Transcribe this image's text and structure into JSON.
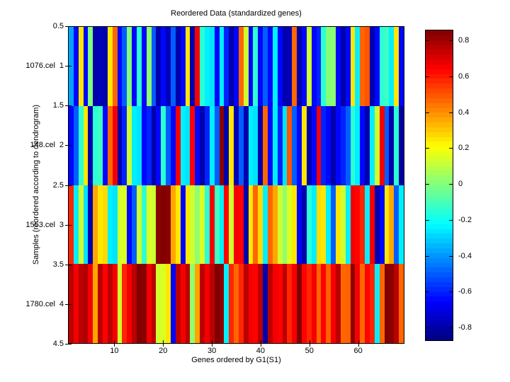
{
  "chart_data": {
    "type": "heatmap",
    "title": "Reordered Data (standardized genes)",
    "xlabel": "Genes ordered by G1(S1)",
    "ylabel": "Samples (reordered according to dendrogram)",
    "row_labels": [
      "1076.cel",
      "148.cel",
      "1553.cel",
      "1780.cel"
    ],
    "x_ticks": [
      10,
      20,
      30,
      40,
      50,
      60
    ],
    "y_ticks": [
      0.5,
      1,
      1.5,
      2,
      2.5,
      3,
      3.5,
      4,
      4.5
    ],
    "x_range": [
      0.5,
      69.5
    ],
    "y_range": [
      0.5,
      4.5
    ],
    "n_genes": 69,
    "colormap": "jet",
    "clim": [
      -0.875,
      0.86
    ],
    "colorbar_ticks": [
      0.8,
      0.6,
      0.4,
      0.2,
      0,
      -0.2,
      -0.4,
      -0.6,
      -0.8
    ],
    "colorbar_tick_labels": [
      "0.8",
      "0.6",
      "0.4",
      "0.2",
      "0",
      "-0.2",
      "-0.4",
      "-0.6",
      "-0.8"
    ],
    "grid": false,
    "legend": "colorbar-right",
    "matrix": [
      [
        -0.38,
        -0.65,
        0.25,
        -0.65,
        0.0,
        -0.8,
        -0.78,
        -0.8,
        0.25,
        0.47,
        -0.65,
        -0.5,
        0.0,
        -0.65,
        -0.15,
        -0.65,
        0.02,
        -0.5,
        -0.8,
        -0.65,
        -0.78,
        -0.5,
        -0.8,
        -0.65,
        0.25,
        -0.8,
        0.66,
        -0.15,
        -0.25,
        -0.27,
        -0.65,
        -0.25,
        -0.6,
        -0.8,
        -0.65,
        0.47,
        0.13,
        -0.65,
        -0.15,
        -0.65,
        -0.5,
        -0.65,
        -0.25,
        -0.65,
        -0.8,
        -0.78,
        0.47,
        -0.8,
        -0.65,
        0.13,
        -0.65,
        -0.6,
        -0.15,
        0.0,
        0.02,
        -0.65,
        -0.8,
        -0.65,
        0.25,
        -0.25,
        0.47,
        0.5,
        -0.8,
        -0.65,
        -0.15,
        -0.12,
        -0.25,
        0.25,
        -0.65
      ],
      [
        -0.65,
        -0.5,
        -0.15,
        0.25,
        -0.8,
        -0.15,
        -0.12,
        -0.65,
        0.47,
        0.66,
        -0.8,
        -0.6,
        0.13,
        -0.25,
        -0.27,
        -0.65,
        -0.6,
        -0.8,
        -0.65,
        -0.15,
        -0.5,
        -0.65,
        0.66,
        -0.25,
        -0.27,
        0.64,
        -0.65,
        -0.8,
        -0.6,
        -0.25,
        -0.5,
        0.84,
        -0.8,
        0.25,
        -0.78,
        -0.5,
        -0.8,
        -0.25,
        -0.27,
        -0.8,
        0.47,
        -0.65,
        -0.25,
        -0.6,
        -0.27,
        0.5,
        -0.5,
        -0.65,
        0.25,
        -0.8,
        -0.65,
        0.66,
        -0.6,
        -0.65,
        -0.8,
        -0.65,
        -0.6,
        -0.5,
        -0.15,
        -0.25,
        -0.65,
        -0.8,
        -0.25,
        0.13,
        0.66,
        -0.5,
        -0.8,
        -0.15,
        -0.82
      ],
      [
        0.58,
        -0.25,
        0.13,
        -0.27,
        -0.8,
        0.36,
        0.25,
        0.27,
        -0.25,
        -0.27,
        0.13,
        0.15,
        -0.65,
        -0.5,
        0.13,
        -0.15,
        0.15,
        0.12,
        0.84,
        0.86,
        0.84,
        0.36,
        0.25,
        -0.65,
        0.25,
        0.13,
        0.02,
        0.15,
        -0.15,
        0.66,
        -0.12,
        -0.25,
        0.64,
        0.13,
        0.66,
        0.64,
        -0.8,
        0.25,
        0.47,
        0.27,
        -0.25,
        0.47,
        0.36,
        0.13,
        0.02,
        0.15,
        0.25,
        -0.65,
        -0.8,
        -0.15,
        -0.25,
        0.27,
        0.25,
        -0.25,
        -0.5,
        0.25,
        0.13,
        -0.25,
        0.66,
        0.64,
        0.58,
        -0.25,
        0.66,
        -0.8,
        -0.65,
        0.25,
        0.36,
        -0.5,
        -0.25
      ],
      [
        0.76,
        0.66,
        0.76,
        0.78,
        0.66,
        0.36,
        0.76,
        0.64,
        0.76,
        0.66,
        0.13,
        0.58,
        0.66,
        0.76,
        0.86,
        0.84,
        0.66,
        0.76,
        0.13,
        0.15,
        0.25,
        -0.65,
        0.76,
        0.66,
        0.76,
        0.02,
        0.36,
        0.76,
        0.66,
        0.76,
        0.86,
        0.84,
        -0.25,
        0.58,
        0.47,
        0.58,
        0.76,
        0.66,
        0.64,
        0.76,
        -0.8,
        0.76,
        0.66,
        0.64,
        0.76,
        0.58,
        0.66,
        0.86,
        0.64,
        0.58,
        0.66,
        0.47,
        0.64,
        0.48,
        0.66,
        0.76,
        0.47,
        0.48,
        0.84,
        0.66,
        0.47,
        0.64,
        0.58,
        -0.25,
        0.47,
        0.86,
        0.84,
        0.76,
        0.47
      ]
    ]
  }
}
